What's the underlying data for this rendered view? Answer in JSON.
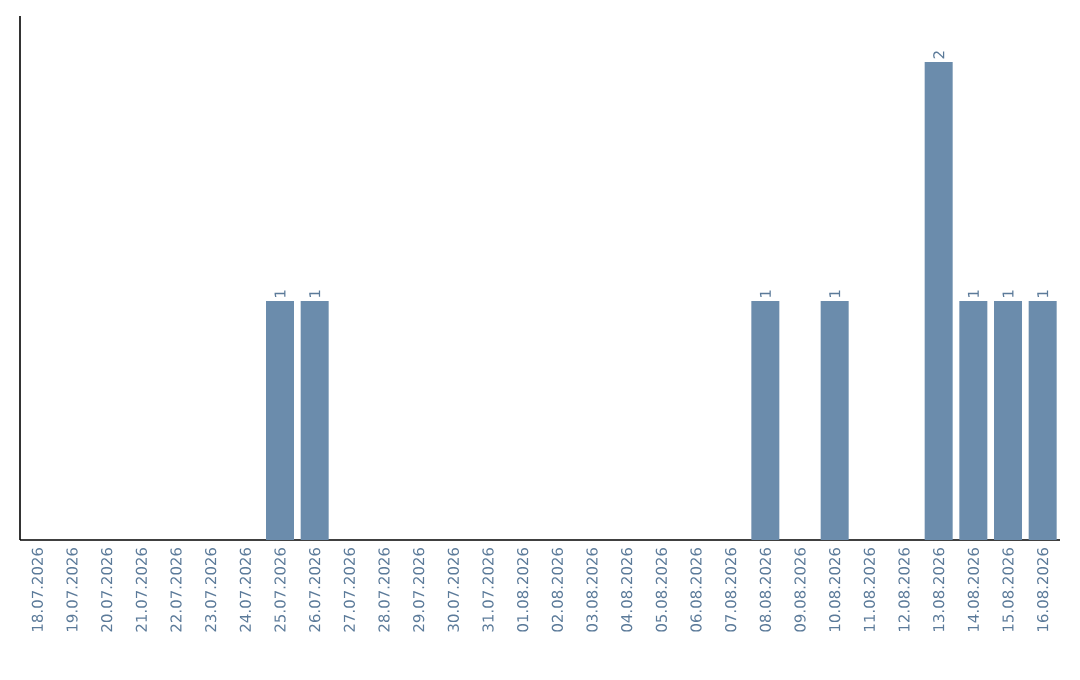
{
  "chart_data": {
    "type": "bar",
    "categories": [
      "18.07.2026",
      "19.07.2026",
      "20.07.2026",
      "21.07.2026",
      "22.07.2026",
      "23.07.2026",
      "24.07.2026",
      "25.07.2026",
      "26.07.2026",
      "27.07.2026",
      "28.07.2026",
      "29.07.2026",
      "30.07.2026",
      "31.07.2026",
      "01.08.2026",
      "02.08.2026",
      "03.08.2026",
      "04.08.2026",
      "05.08.2026",
      "06.08.2026",
      "07.08.2026",
      "08.08.2026",
      "09.08.2026",
      "10.08.2026",
      "11.08.2026",
      "12.08.2026",
      "13.08.2026",
      "14.08.2026",
      "15.08.2026",
      "16.08.2026"
    ],
    "values": [
      0,
      0,
      0,
      0,
      0,
      0,
      0,
      1,
      1,
      0,
      0,
      0,
      0,
      0,
      0,
      0,
      0,
      0,
      0,
      0,
      0,
      1,
      0,
      1,
      0,
      0,
      2,
      1,
      1,
      1
    ],
    "value_labels": [
      null,
      null,
      null,
      null,
      null,
      null,
      null,
      "1",
      "1",
      null,
      null,
      null,
      null,
      null,
      null,
      null,
      null,
      null,
      null,
      null,
      null,
      "1",
      null,
      "1",
      null,
      null,
      "2",
      "1",
      "1",
      "1"
    ],
    "color": "#6b8cac",
    "tick_labels": "x"
  }
}
